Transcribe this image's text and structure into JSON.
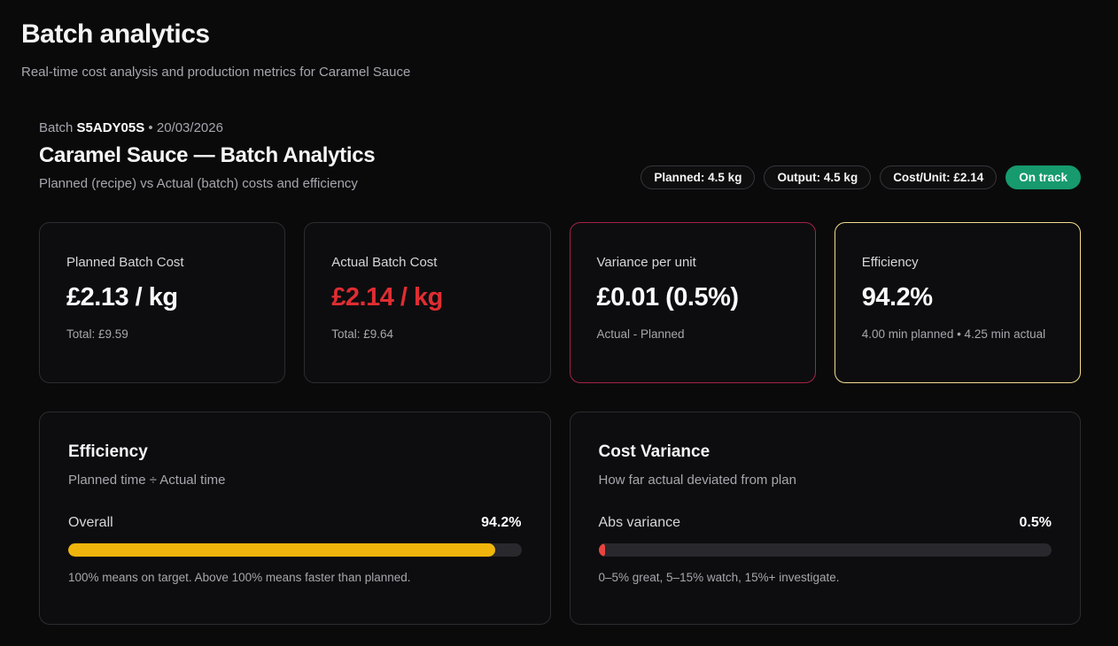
{
  "page": {
    "title": "Batch analytics",
    "subtitle": "Real-time cost analysis and production metrics for Caramel Sauce"
  },
  "batch": {
    "meta_label": "Batch",
    "code": "S5ADY05S",
    "separator": "•",
    "date": "20/03/2026",
    "heading": "Caramel Sauce — Batch Analytics",
    "subheading": "Planned (recipe) vs Actual (batch) costs and efficiency"
  },
  "pills": [
    {
      "label": "Planned: 4.5 kg",
      "type": "outline"
    },
    {
      "label": "Output: 4.5 kg",
      "type": "outline"
    },
    {
      "label": "Cost/Unit: £2.14",
      "type": "outline"
    },
    {
      "label": "On track",
      "type": "success"
    }
  ],
  "stat_cards": [
    {
      "label": "Planned Batch Cost",
      "value": "£2.13 / kg",
      "sub": "Total: £9.59",
      "value_color": "white",
      "border": "default"
    },
    {
      "label": "Actual Batch Cost",
      "value": "£2.14 / kg",
      "sub": "Total: £9.64",
      "value_color": "red",
      "border": "default"
    },
    {
      "label": "Variance per unit",
      "value": "£0.01 (0.5%)",
      "sub": "Actual - Planned",
      "value_color": "white",
      "border": "red"
    },
    {
      "label": "Efficiency",
      "value": "94.2%",
      "sub": "4.00 min planned • 4.25 min actual",
      "value_color": "white",
      "border": "yellow"
    }
  ],
  "panels": [
    {
      "title": "Efficiency",
      "subtitle": "Planned time ÷ Actual time",
      "metric_label": "Overall",
      "metric_value": "94.2%",
      "bar_width_percent": 94.2,
      "bar_color": "bar-yellow",
      "footnote": "100% means on target. Above 100% means faster than planned."
    },
    {
      "title": "Cost Variance",
      "subtitle": "How far actual deviated from plan",
      "metric_label": "Abs variance",
      "metric_value": "0.5%",
      "bar_width_percent": 1.4,
      "bar_color": "bar-red",
      "footnote": "0–5% great, 5–15% watch, 15%+ investigate."
    }
  ],
  "colors": {
    "bg": "#0a0a0b",
    "card-bg": "#0d0d0f",
    "card-border": "#2c2c31",
    "text-primary": "#f5f5f6",
    "text-secondary": "#d6d6da",
    "text-muted": "#a6a6ad",
    "red": "#e02d32",
    "red-border": "#a32345",
    "yellow-border": "#f3dd8e",
    "green": "#169a6e",
    "bar-track": "#28282d",
    "bar-yellow": "#f0b50c",
    "bar-red": "#e8443f"
  }
}
